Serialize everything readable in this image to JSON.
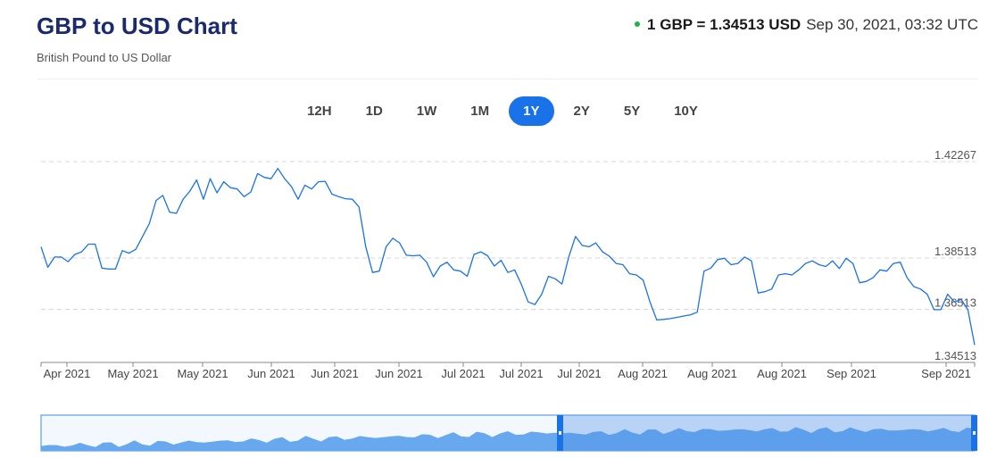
{
  "header": {
    "title": "GBP to USD Chart",
    "subtitle": "British Pound to US Dollar",
    "rate_text": "1 GBP = 1.34513 USD",
    "timestamp": "Sep 30, 2021, 03:32 UTC",
    "status_color": "#20b24a"
  },
  "periods": [
    {
      "label": "12H",
      "active": false
    },
    {
      "label": "1D",
      "active": false
    },
    {
      "label": "1W",
      "active": false
    },
    {
      "label": "1M",
      "active": false
    },
    {
      "label": "1Y",
      "active": true
    },
    {
      "label": "2Y",
      "active": false
    },
    {
      "label": "5Y",
      "active": false
    },
    {
      "label": "10Y",
      "active": false
    }
  ],
  "chart_data": {
    "type": "line",
    "ylim": [
      1.34513,
      1.42267
    ],
    "y_ticks": [
      "1.42267",
      "1.38513",
      "1.36513",
      "1.34513"
    ],
    "x_ticks": [
      "Apr 2021",
      "May 2021",
      "May 2021",
      "Jun 2021",
      "Jun 2021",
      "Jun 2021",
      "Jul 2021",
      "Jul 2021",
      "Jul 2021",
      "Aug 2021",
      "Aug 2021",
      "Aug 2021",
      "Sep 2021",
      "Sep 2021"
    ],
    "grid": "horizontal dashed",
    "line_color": "#1a72e8",
    "series": [
      {
        "values": [
          1.3895,
          1.3815,
          1.3855,
          1.3855,
          1.3837,
          1.3865,
          1.3875,
          1.3905,
          1.3905,
          1.3812,
          1.3808,
          1.3808,
          1.388,
          1.387,
          1.3885,
          1.3935,
          1.3985,
          1.4075,
          1.4095,
          1.403,
          1.4025,
          1.408,
          1.4112,
          1.4155,
          1.408,
          1.416,
          1.4105,
          1.4148,
          1.4125,
          1.412,
          1.409,
          1.4108,
          1.418,
          1.4165,
          1.416,
          1.42,
          1.416,
          1.413,
          1.408,
          1.4135,
          1.412,
          1.4148,
          1.415,
          1.41,
          1.409,
          1.4082,
          1.408,
          1.405,
          1.3895,
          1.3795,
          1.38,
          1.3895,
          1.3928,
          1.391,
          1.3862,
          1.386,
          1.3862,
          1.3835,
          1.3778,
          1.382,
          1.3835,
          1.3805,
          1.38,
          1.378,
          1.3865,
          1.3875,
          1.386,
          1.382,
          1.3842,
          1.3795,
          1.3805,
          1.3748,
          1.368,
          1.367,
          1.371,
          1.378,
          1.377,
          1.375,
          1.3855,
          1.3935,
          1.39,
          1.3895,
          1.391,
          1.3875,
          1.3858,
          1.383,
          1.3825,
          1.379,
          1.3785,
          1.3765,
          1.368,
          1.361,
          1.3612,
          1.3615,
          1.362,
          1.3625,
          1.363,
          1.364,
          1.38,
          1.3812,
          1.3845,
          1.385,
          1.3825,
          1.383,
          1.3855,
          1.384,
          1.3715,
          1.372,
          1.373,
          1.3785,
          1.379,
          1.3785,
          1.3805,
          1.383,
          1.384,
          1.3825,
          1.3818,
          1.384,
          1.381,
          1.385,
          1.383,
          1.3755,
          1.376,
          1.3775,
          1.3805,
          1.38,
          1.383,
          1.3835,
          1.3775,
          1.374,
          1.373,
          1.371,
          1.365,
          1.365,
          1.371,
          1.368,
          1.369,
          1.365,
          1.3512
        ]
      }
    ]
  },
  "navigator": {
    "fill_color": "#68a8ee",
    "selected_fill": "#4a8fe6",
    "handle_color": "#1a72e8"
  }
}
